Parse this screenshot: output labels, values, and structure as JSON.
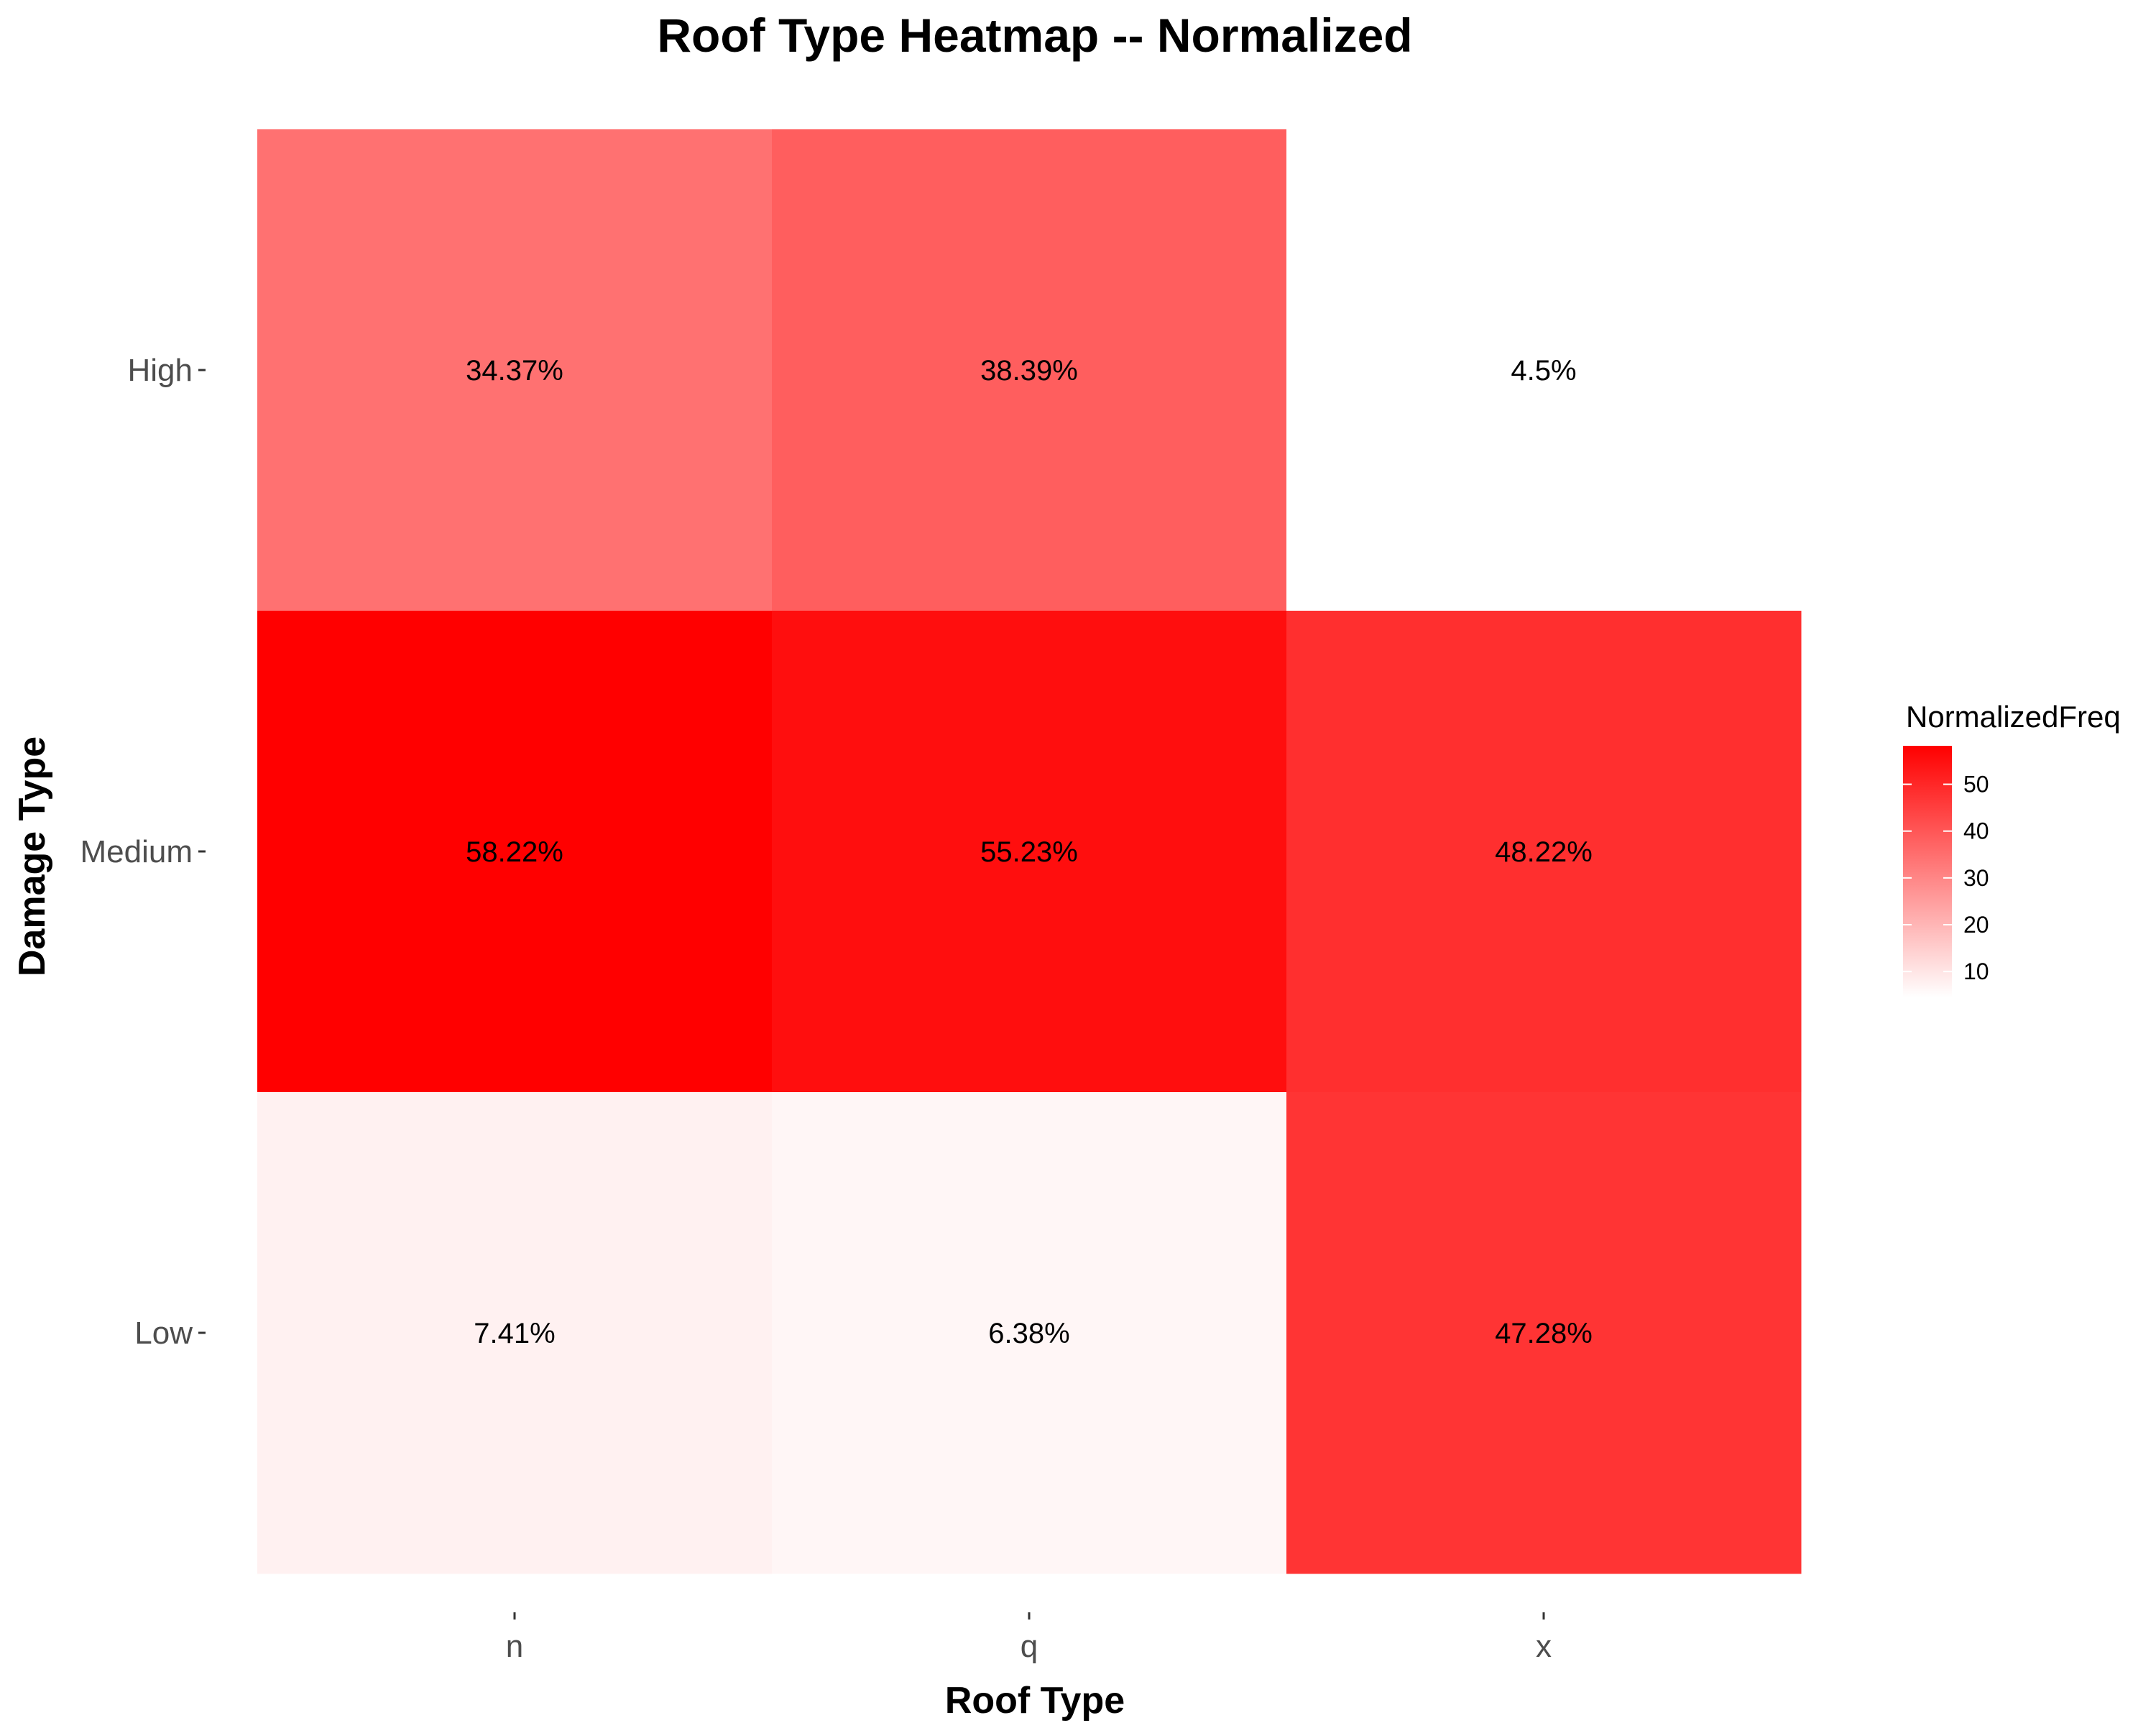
{
  "chart_data": {
    "type": "heatmap",
    "title": "Roof Type Heatmap -- Normalized",
    "xlabel": "Roof Type",
    "ylabel": "Damage Type",
    "x_categories": [
      "n",
      "q",
      "x"
    ],
    "y_categories": [
      "High",
      "Medium",
      "Low"
    ],
    "cells": [
      {
        "x": "n",
        "y": "High",
        "value": 34.37,
        "label": "34.37%"
      },
      {
        "x": "q",
        "y": "High",
        "value": 38.39,
        "label": "38.39%"
      },
      {
        "x": "x",
        "y": "High",
        "value": 4.5,
        "label": "4.5%"
      },
      {
        "x": "n",
        "y": "Medium",
        "value": 58.22,
        "label": "58.22%"
      },
      {
        "x": "q",
        "y": "Medium",
        "value": 55.23,
        "label": "55.23%"
      },
      {
        "x": "x",
        "y": "Medium",
        "value": 48.22,
        "label": "48.22%"
      },
      {
        "x": "n",
        "y": "Low",
        "value": 7.41,
        "label": "7.41%"
      },
      {
        "x": "q",
        "y": "Low",
        "value": 6.38,
        "label": "6.38%"
      },
      {
        "x": "x",
        "y": "Low",
        "value": 47.28,
        "label": "47.28%"
      }
    ],
    "legend": {
      "title": "NormalizedFreq",
      "placement": "right",
      "range": [
        4.5,
        58.22
      ],
      "ticks": [
        10,
        20,
        30,
        40,
        50
      ],
      "low_color": "#ffffff",
      "high_color": "#ff0000"
    },
    "grid": false
  }
}
